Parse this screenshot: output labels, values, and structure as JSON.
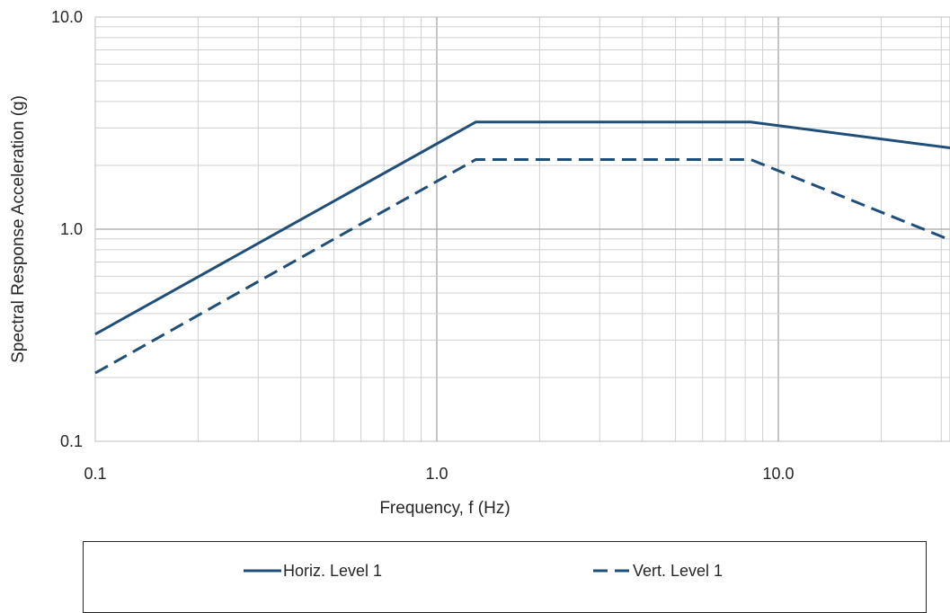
{
  "chart_data": {
    "type": "line",
    "title": "",
    "xlabel": "Frequency, f (Hz)",
    "ylabel": "Spectral Response Acceleration (g)",
    "x_scale": "log",
    "y_scale": "log",
    "xlim": [
      0.1,
      33
    ],
    "ylim": [
      0.1,
      10.0
    ],
    "x_ticks": [
      "0.1",
      "1.0",
      "10.0"
    ],
    "y_ticks": [
      "0.1",
      "1.0",
      "10.0"
    ],
    "grid": true,
    "legend_position": "bottom",
    "series": [
      {
        "name": "Horiz. Level 1",
        "style": "solid",
        "color": "#1f4e79",
        "x": [
          0.1,
          1.3,
          8.3,
          33
        ],
        "y": [
          0.32,
          3.2,
          3.2,
          2.4
        ]
      },
      {
        "name": "Vert. Level 1",
        "style": "dashed",
        "color": "#1f4e79",
        "x": [
          0.1,
          1.3,
          8.3,
          33
        ],
        "y": [
          0.21,
          2.13,
          2.13,
          0.87
        ]
      }
    ]
  }
}
